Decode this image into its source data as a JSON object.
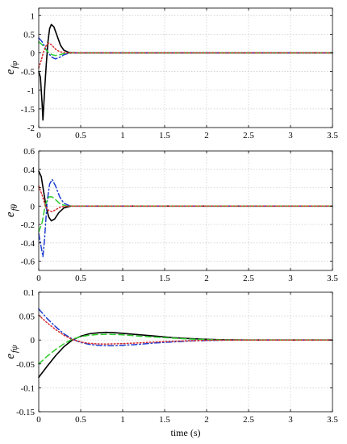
{
  "chart_data": [
    {
      "type": "line",
      "ylabel_main": "e",
      "ylabel_sub": "fφ",
      "xlabel": "",
      "xlim": [
        0,
        3.5
      ],
      "ylim": [
        -2,
        1.2
      ],
      "xticks": [
        0,
        0.5,
        1,
        1.5,
        2,
        2.5,
        3,
        3.5
      ],
      "xtick_labels": [
        "0",
        "0.5",
        "1",
        "1.5",
        "2",
        "2.5",
        "3",
        "3.5"
      ],
      "yticks": [
        -2,
        -1.5,
        -1,
        -0.5,
        0,
        0.5,
        1
      ],
      "ytick_labels": [
        "-2",
        "-1.5",
        "-1",
        "-0.5",
        "0",
        "0.5",
        "1"
      ],
      "grid": true,
      "series": [
        {
          "color": "#000000",
          "style": "solid",
          "points": [
            [
              0,
              -0.5
            ],
            [
              0.02,
              -0.65
            ],
            [
              0.04,
              -1.35
            ],
            [
              0.05,
              -1.8
            ],
            [
              0.07,
              -1.0
            ],
            [
              0.09,
              -0.3
            ],
            [
              0.11,
              0.3
            ],
            [
              0.13,
              0.65
            ],
            [
              0.15,
              0.76
            ],
            [
              0.18,
              0.7
            ],
            [
              0.22,
              0.45
            ],
            [
              0.26,
              0.2
            ],
            [
              0.3,
              0.07
            ],
            [
              0.36,
              0.01
            ],
            [
              0.45,
              0
            ],
            [
              3.5,
              0
            ]
          ]
        },
        {
          "color": "#1f3fd1",
          "style": "dashdot",
          "points": [
            [
              0,
              0.4
            ],
            [
              0.04,
              0.3
            ],
            [
              0.08,
              0.12
            ],
            [
              0.12,
              -0.02
            ],
            [
              0.16,
              -0.12
            ],
            [
              0.2,
              -0.16
            ],
            [
              0.25,
              -0.12
            ],
            [
              0.3,
              -0.05
            ],
            [
              0.36,
              -0.01
            ],
            [
              0.45,
              0
            ],
            [
              3.5,
              0
            ]
          ]
        },
        {
          "color": "#2ecc2e",
          "style": "dashed",
          "points": [
            [
              0,
              0.3
            ],
            [
              0.04,
              0.22
            ],
            [
              0.08,
              0.1
            ],
            [
              0.12,
              0
            ],
            [
              0.16,
              -0.05
            ],
            [
              0.2,
              -0.07
            ],
            [
              0.25,
              -0.05
            ],
            [
              0.3,
              -0.02
            ],
            [
              0.38,
              0
            ],
            [
              3.5,
              0
            ]
          ]
        },
        {
          "color": "#d62728",
          "style": "dotted",
          "points": [
            [
              0,
              -0.4
            ],
            [
              0.03,
              -0.2
            ],
            [
              0.06,
              0.05
            ],
            [
              0.09,
              0.2
            ],
            [
              0.12,
              0.26
            ],
            [
              0.16,
              0.2
            ],
            [
              0.2,
              0.1
            ],
            [
              0.25,
              0.03
            ],
            [
              0.32,
              0
            ],
            [
              3.5,
              0
            ]
          ]
        }
      ]
    },
    {
      "type": "line",
      "ylabel_main": "e",
      "ylabel_sub": "fθ",
      "xlabel": "",
      "xlim": [
        0,
        3.5
      ],
      "ylim": [
        -0.7,
        0.6
      ],
      "xticks": [
        0,
        0.5,
        1,
        1.5,
        2,
        2.5,
        3,
        3.5
      ],
      "xtick_labels": [
        "0",
        "0.5",
        "1",
        "1.5",
        "2",
        "2.5",
        "3",
        "3.5"
      ],
      "yticks": [
        -0.6,
        -0.4,
        -0.2,
        0,
        0.2,
        0.4,
        0.6
      ],
      "ytick_labels": [
        "-0.6",
        "-0.4",
        "-0.2",
        "0",
        "0.2",
        "0.4",
        "0.6"
      ],
      "grid": true,
      "series": [
        {
          "color": "#000000",
          "style": "solid",
          "points": [
            [
              0,
              0.38
            ],
            [
              0.03,
              0.32
            ],
            [
              0.06,
              0.15
            ],
            [
              0.09,
              -0.02
            ],
            [
              0.12,
              -0.12
            ],
            [
              0.15,
              -0.16
            ],
            [
              0.19,
              -0.14
            ],
            [
              0.24,
              -0.07
            ],
            [
              0.3,
              -0.02
            ],
            [
              0.38,
              0
            ],
            [
              3.5,
              0
            ]
          ]
        },
        {
          "color": "#1f3fd1",
          "style": "dashdot",
          "points": [
            [
              0,
              -0.3
            ],
            [
              0.03,
              -0.45
            ],
            [
              0.05,
              -0.55
            ],
            [
              0.07,
              -0.35
            ],
            [
              0.1,
              0.05
            ],
            [
              0.13,
              0.24
            ],
            [
              0.16,
              0.29
            ],
            [
              0.2,
              0.22
            ],
            [
              0.25,
              0.1
            ],
            [
              0.3,
              0.03
            ],
            [
              0.38,
              0
            ],
            [
              3.5,
              0
            ]
          ]
        },
        {
          "color": "#2ecc2e",
          "style": "dashed",
          "points": [
            [
              0,
              -0.28
            ],
            [
              0.04,
              -0.18
            ],
            [
              0.08,
              0.02
            ],
            [
              0.12,
              0.1
            ],
            [
              0.16,
              0.1
            ],
            [
              0.2,
              0.07
            ],
            [
              0.26,
              0.02
            ],
            [
              0.34,
              0
            ],
            [
              3.5,
              0
            ]
          ]
        },
        {
          "color": "#d62728",
          "style": "dotted",
          "points": [
            [
              0,
              0.22
            ],
            [
              0.04,
              0.12
            ],
            [
              0.08,
              0
            ],
            [
              0.12,
              -0.05
            ],
            [
              0.16,
              -0.06
            ],
            [
              0.2,
              -0.04
            ],
            [
              0.26,
              -0.01
            ],
            [
              0.34,
              0
            ],
            [
              3.5,
              0
            ]
          ]
        }
      ]
    },
    {
      "type": "line",
      "ylabel_main": "e",
      "ylabel_sub": "fψ",
      "xlabel": "time (s)",
      "xlim": [
        0,
        3.5
      ],
      "ylim": [
        -0.15,
        0.1
      ],
      "xticks": [
        0,
        0.5,
        1,
        1.5,
        2,
        2.5,
        3,
        3.5
      ],
      "xtick_labels": [
        "0",
        "0.5",
        "1",
        "1.5",
        "2",
        "2.5",
        "3",
        "3.5"
      ],
      "yticks": [
        -0.15,
        -0.1,
        -0.05,
        0,
        0.05,
        0.1
      ],
      "ytick_labels": [
        "-0.15",
        "-0.1",
        "-0.05",
        "0",
        "0.05",
        "0.1"
      ],
      "grid": true,
      "series": [
        {
          "color": "#000000",
          "style": "solid",
          "points": [
            [
              0,
              -0.078
            ],
            [
              0.1,
              -0.055
            ],
            [
              0.2,
              -0.033
            ],
            [
              0.3,
              -0.014
            ],
            [
              0.4,
              0
            ],
            [
              0.5,
              0.008
            ],
            [
              0.6,
              0.013
            ],
            [
              0.7,
              0.015
            ],
            [
              0.8,
              0.016
            ],
            [
              0.9,
              0.0155
            ],
            [
              1.0,
              0.014
            ],
            [
              1.2,
              0.011
            ],
            [
              1.4,
              0.008
            ],
            [
              1.6,
              0.005
            ],
            [
              1.8,
              0.003
            ],
            [
              2.0,
              0.0015
            ],
            [
              2.2,
              0.0005
            ],
            [
              2.5,
              0
            ],
            [
              3.5,
              0
            ]
          ]
        },
        {
          "color": "#1f3fd1",
          "style": "dashdot",
          "points": [
            [
              0,
              0.065
            ],
            [
              0.1,
              0.045
            ],
            [
              0.2,
              0.028
            ],
            [
              0.3,
              0.013
            ],
            [
              0.4,
              0.002
            ],
            [
              0.5,
              -0.005
            ],
            [
              0.6,
              -0.009
            ],
            [
              0.7,
              -0.011
            ],
            [
              0.8,
              -0.012
            ],
            [
              0.9,
              -0.012
            ],
            [
              1.0,
              -0.011
            ],
            [
              1.2,
              -0.009
            ],
            [
              1.4,
              -0.006
            ],
            [
              1.6,
              -0.004
            ],
            [
              1.8,
              -0.002
            ],
            [
              2.0,
              -0.001
            ],
            [
              2.3,
              0
            ],
            [
              3.5,
              0
            ]
          ]
        },
        {
          "color": "#2ecc2e",
          "style": "dashed",
          "points": [
            [
              0,
              -0.05
            ],
            [
              0.1,
              -0.034
            ],
            [
              0.2,
              -0.02
            ],
            [
              0.3,
              -0.008
            ],
            [
              0.4,
              0.002
            ],
            [
              0.5,
              0.007
            ],
            [
              0.6,
              0.01
            ],
            [
              0.7,
              0.0115
            ],
            [
              0.8,
              0.012
            ],
            [
              0.9,
              0.0115
            ],
            [
              1.0,
              0.011
            ],
            [
              1.2,
              0.008
            ],
            [
              1.4,
              0.006
            ],
            [
              1.6,
              0.004
            ],
            [
              1.8,
              0.002
            ],
            [
              2.0,
              0.001
            ],
            [
              2.3,
              0
            ],
            [
              3.5,
              0
            ]
          ]
        },
        {
          "color": "#d62728",
          "style": "dotted",
          "points": [
            [
              0,
              0.052
            ],
            [
              0.1,
              0.036
            ],
            [
              0.2,
              0.022
            ],
            [
              0.3,
              0.01
            ],
            [
              0.4,
              0.001
            ],
            [
              0.5,
              -0.004
            ],
            [
              0.6,
              -0.007
            ],
            [
              0.7,
              -0.008
            ],
            [
              0.8,
              -0.0085
            ],
            [
              0.9,
              -0.008
            ],
            [
              1.0,
              -0.0075
            ],
            [
              1.2,
              -0.006
            ],
            [
              1.4,
              -0.004
            ],
            [
              1.6,
              -0.0025
            ],
            [
              1.8,
              -0.0015
            ],
            [
              2.0,
              -0.0005
            ],
            [
              2.3,
              0
            ],
            [
              3.5,
              0
            ]
          ]
        }
      ]
    }
  ]
}
